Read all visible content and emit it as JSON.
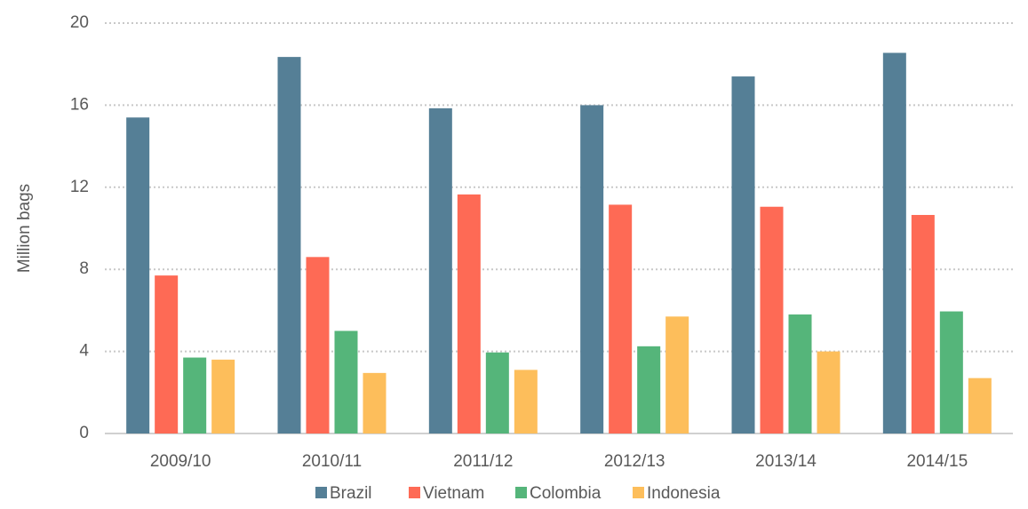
{
  "chart_data": {
    "type": "bar",
    "categories": [
      "2009/10",
      "2010/11",
      "2011/12",
      "2012/13",
      "2013/14",
      "2014/15"
    ],
    "y_label": "Million bags",
    "series": [
      {
        "name": "Brazil",
        "color": "#557f96",
        "values": [
          15.4,
          18.35,
          15.85,
          16.0,
          17.4,
          18.55
        ]
      },
      {
        "name": "Vietnam",
        "color": "#fe6a55",
        "values": [
          7.7,
          8.6,
          11.65,
          11.15,
          11.05,
          10.65
        ]
      },
      {
        "name": "Colombia",
        "color": "#55b57a",
        "values": [
          3.7,
          5.0,
          3.95,
          4.25,
          5.8,
          5.95
        ]
      },
      {
        "name": "Indonesia",
        "color": "#fdbe5b",
        "values": [
          3.6,
          2.95,
          3.1,
          5.7,
          4.0,
          2.7
        ]
      }
    ],
    "ylim": [
      0,
      20
    ],
    "yticks": [
      0,
      4,
      8,
      12,
      16,
      20
    ],
    "grid": true,
    "legend": "bottom"
  }
}
